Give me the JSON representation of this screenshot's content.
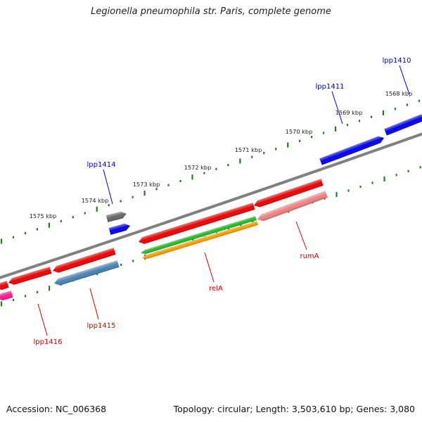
{
  "title": "Legionella pneumophila str. Paris, complete genome",
  "footer": {
    "accession": "Accession: NC_006368",
    "summary": "Topology: circular; Length: 3,503,610 bp; Genes: 3,080"
  },
  "colors": {
    "backbone": "#808080",
    "tick": "#2a7a22",
    "label_plus": "#0000c0",
    "label_minus": "#cc0000"
  },
  "ticks": [
    {
      "label": "1568 kbp"
    },
    {
      "label": "1569 kbp"
    },
    {
      "label": "1570 kbp"
    },
    {
      "label": "1571 kbp"
    },
    {
      "label": "1572 kbp"
    },
    {
      "label": "1573 kbp"
    },
    {
      "label": "1574 kbp"
    },
    {
      "label": "1575 kbp"
    }
  ],
  "genes": [
    {
      "name": "lpp1410",
      "strand": "+",
      "color": "#0000ee",
      "labeled": true
    },
    {
      "name": "lpp1411",
      "strand": "+",
      "color": "#0000ee",
      "labeled": true
    },
    {
      "name": "",
      "strand": "-",
      "color": "#ee0000",
      "labeled": false
    },
    {
      "name": "rumA",
      "strand": "-",
      "color": "#f08080",
      "labeled": true
    },
    {
      "name": "relA",
      "strand": "-",
      "color": "#ee0000",
      "labeled": true
    },
    {
      "name": "",
      "strand": "-",
      "color": "#22bb22",
      "labeled": false
    },
    {
      "name": "",
      "strand": "-",
      "color": "#ff9900",
      "labeled": false
    },
    {
      "name": "lpp1414",
      "strand": "+",
      "color": "#666666",
      "labeled": true
    },
    {
      "name": "",
      "strand": "+",
      "color": "#0000ee",
      "labeled": false
    },
    {
      "name": "",
      "strand": "-",
      "color": "#ee0000",
      "labeled": false
    },
    {
      "name": "lpp1415",
      "strand": "-",
      "color": "#4682b4",
      "labeled": true
    },
    {
      "name": "",
      "strand": "-",
      "color": "#ee0000",
      "labeled": false
    },
    {
      "name": "lpp1416",
      "strand": "-",
      "color": "#ee0000",
      "labeled": true
    },
    {
      "name": "",
      "strand": "-",
      "color": "#ff1493",
      "labeled": false
    }
  ]
}
